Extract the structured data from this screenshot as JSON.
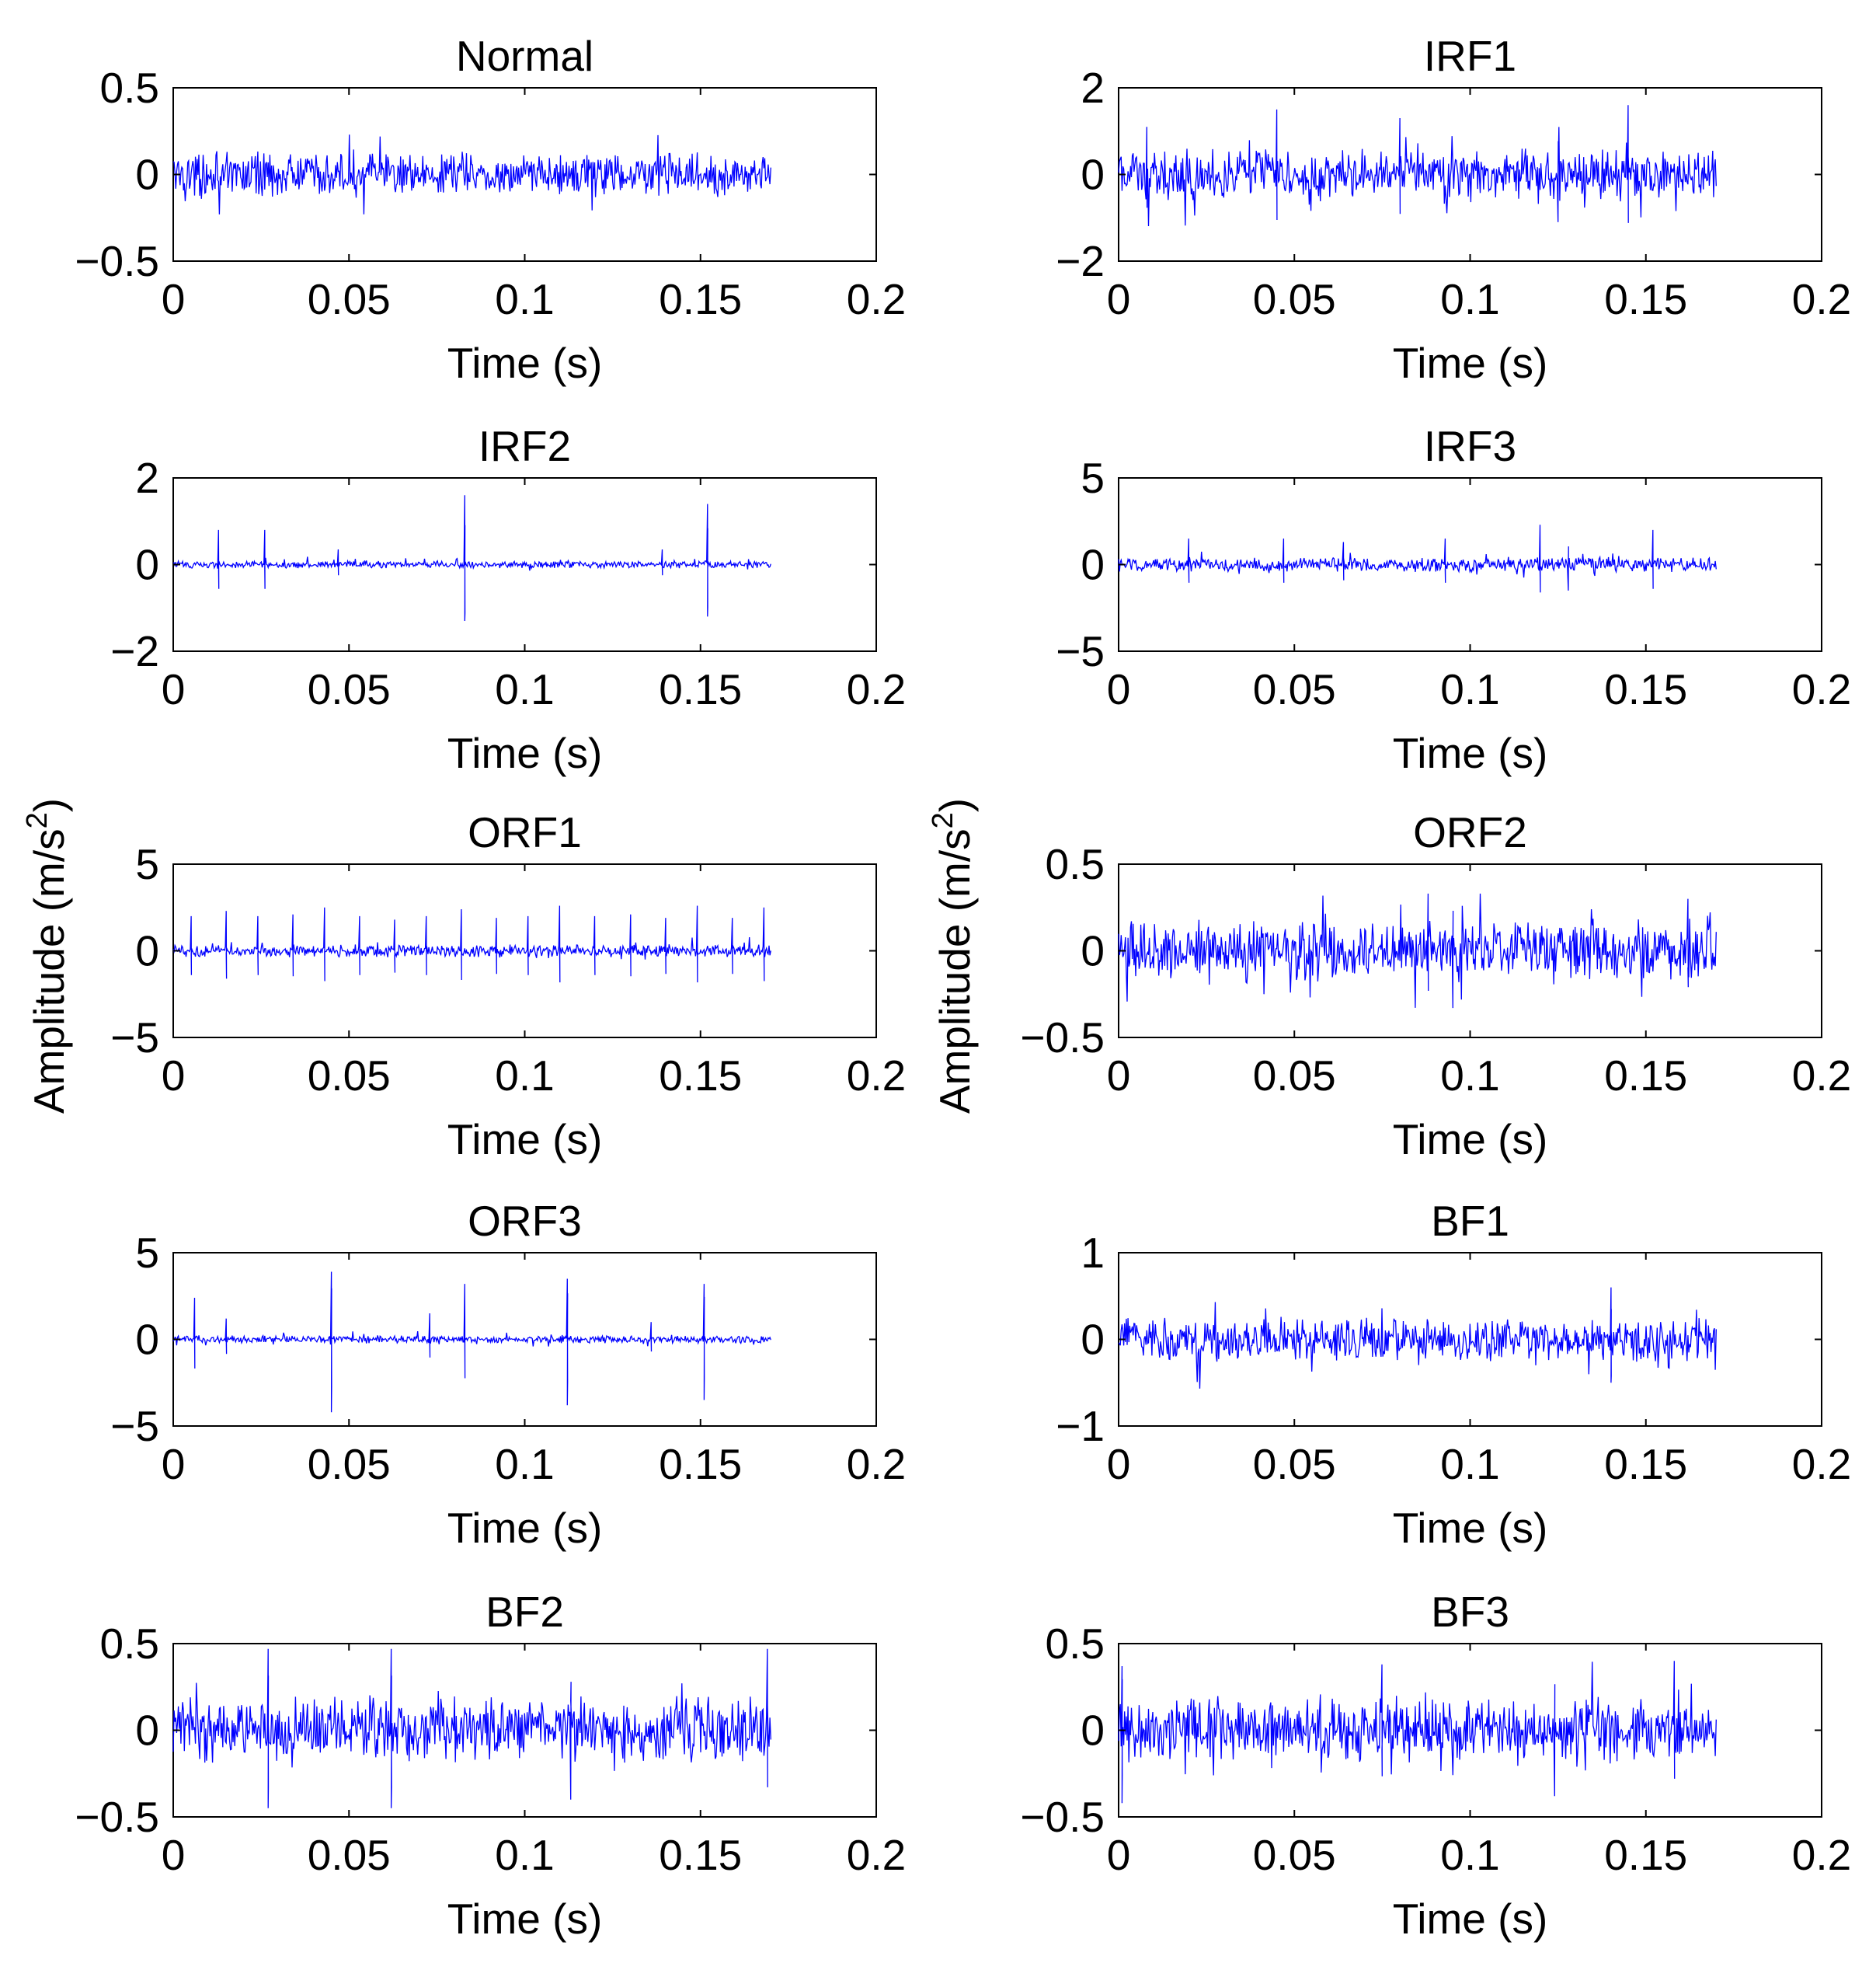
{
  "figure": {
    "shared_ylabel": "Amplitude (m/s",
    "shared_ylabel_sup": "2",
    "shared_ylabel_close": ")"
  },
  "colors": {
    "signal": "#0000ff",
    "axes": "#000000",
    "background": "#ffffff"
  },
  "chart_data": [
    {
      "type": "line",
      "title": "Normal",
      "xlabel": "Time (s)",
      "ylabel": "",
      "xlim": [
        0,
        0.2
      ],
      "ylim": [
        -0.5,
        0.5
      ],
      "xticks": [
        0,
        0.05,
        0.1,
        0.15,
        0.2
      ],
      "xtick_labels": [
        "0",
        "0.05",
        "0.1",
        "0.15",
        "0.2"
      ],
      "yticks": [
        -0.5,
        0,
        0.5
      ],
      "ytick_labels": [
        "−0.5",
        "0",
        "0.5"
      ],
      "signal": {
        "duration": 0.17,
        "samples": 700,
        "noise": 0.09,
        "peak": 0.23,
        "spikes": []
      }
    },
    {
      "type": "line",
      "title": "IRF1",
      "xlabel": "Time (s)",
      "ylabel": "",
      "xlim": [
        0,
        0.2
      ],
      "ylim": [
        -2,
        2
      ],
      "xticks": [
        0,
        0.05,
        0.1,
        0.15,
        0.2
      ],
      "xtick_labels": [
        "0",
        "0.05",
        "0.1",
        "0.15",
        "0.2"
      ],
      "yticks": [
        -2,
        0,
        2
      ],
      "ytick_labels": [
        "−2",
        "0",
        "2"
      ],
      "signal": {
        "duration": 0.17,
        "samples": 700,
        "noise": 0.4,
        "peak": 1.5,
        "spikes": [
          [
            0.008,
            1.1
          ],
          [
            0.045,
            1.5
          ],
          [
            0.08,
            1.3
          ],
          [
            0.145,
            1.6
          ],
          [
            0.125,
            -1.1
          ]
        ]
      }
    },
    {
      "type": "line",
      "title": "IRF2",
      "xlabel": "Time (s)",
      "ylabel": "",
      "xlim": [
        0,
        0.2
      ],
      "ylim": [
        -2,
        2
      ],
      "xticks": [
        0,
        0.05,
        0.1,
        0.15,
        0.2
      ],
      "xtick_labels": [
        "0",
        "0.05",
        "0.1",
        "0.15",
        "0.2"
      ],
      "yticks": [
        -2,
        0,
        2
      ],
      "ytick_labels": [
        "−2",
        "0",
        "2"
      ],
      "signal": {
        "duration": 0.17,
        "samples": 700,
        "noise": 0.06,
        "peak": 1.6,
        "spikes": [
          [
            0.013,
            0.8
          ],
          [
            0.026,
            0.8
          ],
          [
            0.083,
            1.6
          ],
          [
            0.083,
            -1.3
          ],
          [
            0.152,
            1.4
          ],
          [
            0.152,
            -1.2
          ],
          [
            0.047,
            0.35
          ],
          [
            0.139,
            0.35
          ]
        ]
      }
    },
    {
      "type": "line",
      "title": "IRF3",
      "xlabel": "Time (s)",
      "ylabel": "",
      "xlim": [
        0,
        0.2
      ],
      "ylim": [
        -5,
        5
      ],
      "xticks": [
        0,
        0.05,
        0.1,
        0.15,
        0.2
      ],
      "xtick_labels": [
        "0",
        "0.05",
        "0.1",
        "0.15",
        "0.2"
      ],
      "yticks": [
        -5,
        0,
        5
      ],
      "ytick_labels": [
        "−5",
        "0",
        "5"
      ],
      "signal": {
        "duration": 0.17,
        "samples": 700,
        "noise": 0.3,
        "peak": 2.3,
        "spikes": [
          [
            0.02,
            1.5
          ],
          [
            0.047,
            1.5
          ],
          [
            0.064,
            1.3
          ],
          [
            0.093,
            1.5
          ],
          [
            0.12,
            2.3
          ],
          [
            0.152,
            2.0
          ],
          [
            0.128,
            -1.5
          ]
        ]
      }
    },
    {
      "type": "line",
      "title": "ORF1",
      "xlabel": "Time (s)",
      "ylabel": "",
      "xlim": [
        0,
        0.2
      ],
      "ylim": [
        -5,
        5
      ],
      "xticks": [
        0,
        0.05,
        0.1,
        0.15,
        0.2
      ],
      "xtick_labels": [
        "0",
        "0.05",
        "0.1",
        "0.15",
        "0.2"
      ],
      "yticks": [
        -5,
        0,
        5
      ],
      "ytick_labels": [
        "−5",
        "0",
        "5"
      ],
      "signal": {
        "duration": 0.17,
        "samples": 700,
        "noise": 0.25,
        "peak": 2.6,
        "spikes": [
          [
            0.005,
            2.0
          ],
          [
            0.015,
            2.3
          ],
          [
            0.024,
            2.0
          ],
          [
            0.034,
            2.1
          ],
          [
            0.043,
            2.5
          ],
          [
            0.053,
            2.0
          ],
          [
            0.063,
            1.8
          ],
          [
            0.072,
            2.0
          ],
          [
            0.082,
            2.4
          ],
          [
            0.092,
            1.9
          ],
          [
            0.101,
            2.0
          ],
          [
            0.11,
            2.6
          ],
          [
            0.12,
            2.0
          ],
          [
            0.13,
            2.1
          ],
          [
            0.14,
            1.9
          ],
          [
            0.149,
            2.6
          ],
          [
            0.159,
            1.9
          ],
          [
            0.168,
            2.5
          ]
        ]
      }
    },
    {
      "type": "line",
      "title": "ORF2",
      "xlabel": "Time (s)",
      "ylabel": "",
      "xlim": [
        0,
        0.2
      ],
      "ylim": [
        -0.5,
        0.5
      ],
      "xticks": [
        0,
        0.05,
        0.1,
        0.15,
        0.2
      ],
      "xtick_labels": [
        "0",
        "0.05",
        "0.1",
        "0.15",
        "0.2"
      ],
      "yticks": [
        -0.5,
        0,
        0.5
      ],
      "ytick_labels": [
        "−0.5",
        "0",
        "0.5"
      ],
      "signal": {
        "duration": 0.17,
        "samples": 700,
        "noise": 0.12,
        "peak": 0.33,
        "spikes": [
          [
            0.088,
            0.33
          ],
          [
            0.095,
            -0.33
          ],
          [
            0.162,
            0.3
          ]
        ]
      }
    },
    {
      "type": "line",
      "title": "ORF3",
      "xlabel": "Time (s)",
      "ylabel": "",
      "xlim": [
        0,
        0.2
      ],
      "ylim": [
        -5,
        5
      ],
      "xticks": [
        0,
        0.05,
        0.1,
        0.15,
        0.2
      ],
      "xtick_labels": [
        "0",
        "0.05",
        "0.1",
        "0.15",
        "0.2"
      ],
      "yticks": [
        -5,
        0,
        5
      ],
      "ytick_labels": [
        "−5",
        "0",
        "5"
      ],
      "signal": {
        "duration": 0.17,
        "samples": 700,
        "noise": 0.15,
        "peak": 4.0,
        "spikes": [
          [
            0.006,
            2.4
          ],
          [
            0.015,
            1.2
          ],
          [
            0.045,
            3.9
          ],
          [
            0.045,
            -4.2
          ],
          [
            0.073,
            1.5
          ],
          [
            0.083,
            3.2
          ],
          [
            0.112,
            3.5
          ],
          [
            0.112,
            -3.8
          ],
          [
            0.151,
            3.2
          ],
          [
            0.151,
            -3.5
          ],
          [
            0.136,
            1.0
          ]
        ]
      }
    },
    {
      "type": "line",
      "title": "BF1",
      "xlabel": "Time (s)",
      "ylabel": "",
      "xlim": [
        0,
        0.2
      ],
      "ylim": [
        -1,
        1
      ],
      "xticks": [
        0,
        0.05,
        0.1,
        0.15,
        0.2
      ],
      "xtick_labels": [
        "0",
        "0.05",
        "0.1",
        "0.15",
        "0.2"
      ],
      "yticks": [
        -1,
        0,
        1
      ],
      "ytick_labels": [
        "−1",
        "0",
        "1"
      ],
      "signal": {
        "duration": 0.17,
        "samples": 700,
        "noise": 0.17,
        "peak": 0.6,
        "spikes": [
          [
            0.14,
            0.6
          ],
          [
            0.14,
            -0.5
          ]
        ]
      }
    },
    {
      "type": "line",
      "title": "BF2",
      "xlabel": "Time (s)",
      "ylabel": "",
      "xlim": [
        0,
        0.2
      ],
      "ylim": [
        -0.5,
        0.5
      ],
      "xticks": [
        0,
        0.05,
        0.1,
        0.15,
        0.2
      ],
      "xtick_labels": [
        "0",
        "0.05",
        "0.1",
        "0.15",
        "0.2"
      ],
      "yticks": [
        -0.5,
        0,
        0.5
      ],
      "ytick_labels": [
        "−0.5",
        "0",
        "0.5"
      ],
      "signal": {
        "duration": 0.17,
        "samples": 700,
        "noise": 0.13,
        "peak": 0.47,
        "spikes": [
          [
            0.027,
            0.47
          ],
          [
            0.027,
            -0.45
          ],
          [
            0.062,
            0.47
          ],
          [
            0.062,
            -0.45
          ],
          [
            0.169,
            0.47
          ],
          [
            0.113,
            -0.4
          ]
        ]
      }
    },
    {
      "type": "line",
      "title": "BF3",
      "xlabel": "Time (s)",
      "ylabel": "",
      "xlim": [
        0,
        0.2
      ],
      "ylim": [
        -0.5,
        0.5
      ],
      "xticks": [
        0,
        0.05,
        0.1,
        0.15,
        0.2
      ],
      "xtick_labels": [
        "0",
        "0.05",
        "0.1",
        "0.15",
        "0.2"
      ],
      "yticks": [
        -0.5,
        0,
        0.5
      ],
      "ytick_labels": [
        "−0.5",
        "0",
        "0.5"
      ],
      "signal": {
        "duration": 0.17,
        "samples": 700,
        "noise": 0.13,
        "peak": 0.45,
        "spikes": [
          [
            0.001,
            0.37
          ],
          [
            0.001,
            -0.42
          ],
          [
            0.075,
            0.38
          ],
          [
            0.158,
            0.4
          ],
          [
            0.124,
            -0.38
          ]
        ]
      }
    }
  ]
}
